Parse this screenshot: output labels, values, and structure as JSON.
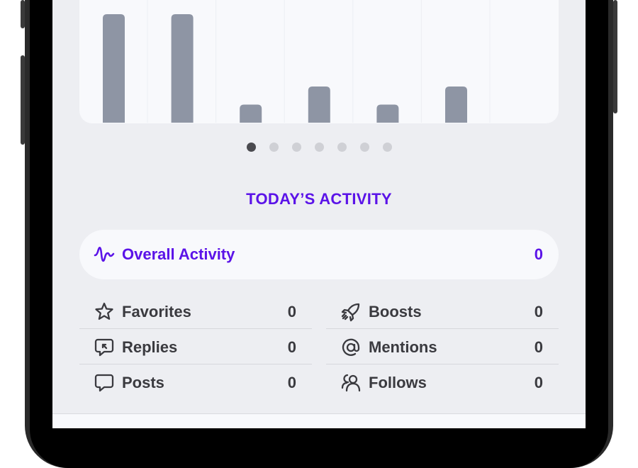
{
  "chart_data": {
    "type": "bar",
    "categories": [
      "",
      "",
      "",
      "",
      "",
      "",
      ""
    ],
    "values": [
      6,
      6,
      1,
      2,
      1,
      2,
      0
    ],
    "bar_color": "#8e95a4",
    "grid": true
  },
  "pager": {
    "count": 7,
    "active": 0
  },
  "section_title": "TODAY’S ACTIVITY",
  "overall": {
    "label": "Overall Activity",
    "value": "0",
    "icon": "activity-wave-icon"
  },
  "stats": {
    "favorites": {
      "label": "Favorites",
      "value": "0",
      "icon": "star-icon"
    },
    "boosts": {
      "label": "Boosts",
      "value": "0",
      "icon": "rocket-icon"
    },
    "replies": {
      "label": "Replies",
      "value": "0",
      "icon": "reply-bubble-icon"
    },
    "mentions": {
      "label": "Mentions",
      "value": "0",
      "icon": "at-sign-icon"
    },
    "posts": {
      "label": "Posts",
      "value": "0",
      "icon": "speech-bubble-icon"
    },
    "follows": {
      "label": "Follows",
      "value": "0",
      "icon": "people-icon"
    }
  },
  "colors": {
    "accent": "#5b13e8",
    "text": "#3a3a3f",
    "background": "#edeef2",
    "card": "#f8f9fc"
  }
}
